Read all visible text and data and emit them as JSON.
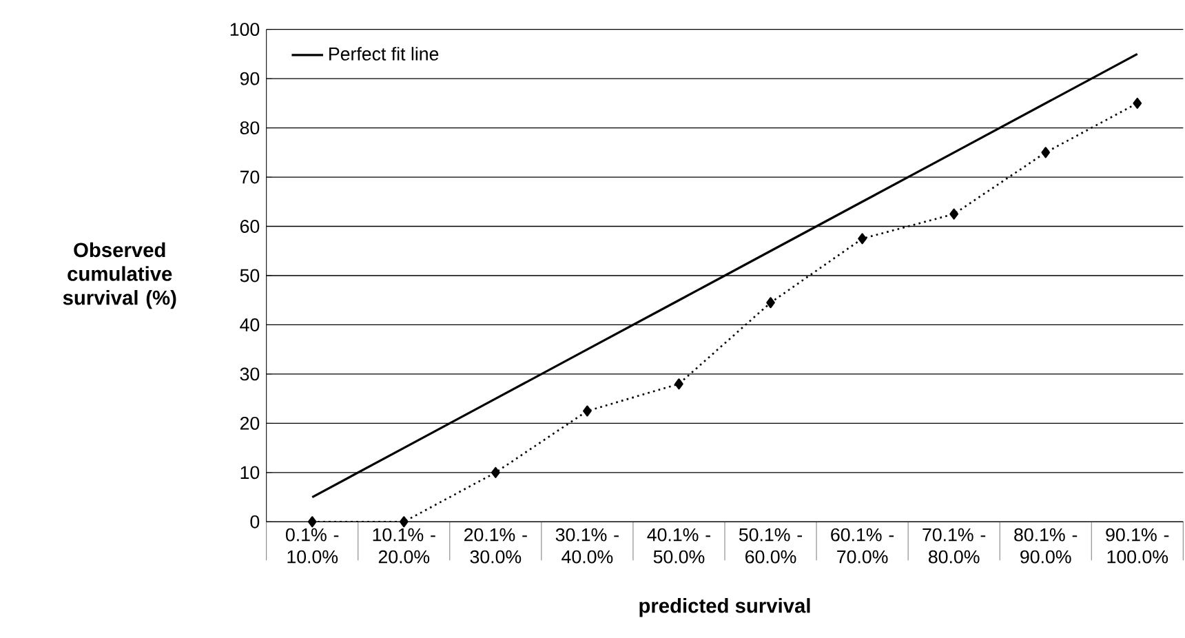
{
  "chart_data": {
    "type": "line",
    "xlabel": "predicted survival",
    "ylabel": "Observed cumulative survival (%)",
    "categories": [
      "0.1% - 10.0%",
      "10.1% - 20.0%",
      "20.1% - 30.0%",
      "30.1% - 40.0%",
      "40.1% - 50.0%",
      "50.1% - 60.0%",
      "60.1% - 70.0%",
      "70.1% - 80.0%",
      "80.1% - 90.0%",
      "90.1% - 100.0%"
    ],
    "series": [
      {
        "values": [
          0,
          0,
          10,
          22.5,
          28,
          44.5,
          57.5,
          62.5,
          75,
          85
        ],
        "color": "#000000",
        "marker": "diamond",
        "line_style": "dotted"
      },
      {
        "name": "Perfect fit line",
        "type": "line",
        "values": [
          5,
          15,
          25,
          35,
          45,
          55,
          65,
          75,
          85,
          95
        ],
        "color": "#000000",
        "marker": "none",
        "line_style": "solid"
      }
    ],
    "ylim": [
      0,
      100
    ],
    "yticks": [
      0,
      10,
      20,
      30,
      40,
      50,
      60,
      70,
      80,
      90,
      100
    ],
    "grid": "y",
    "legend": "top left"
  }
}
